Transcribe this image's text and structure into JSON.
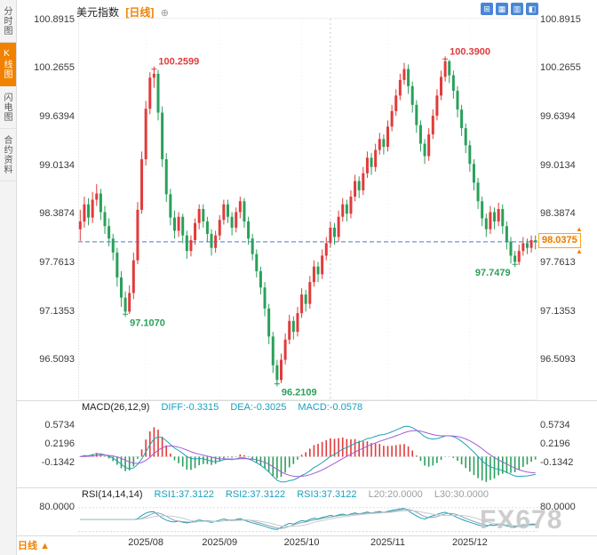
{
  "colors": {
    "up": "#e13b3b",
    "down": "#2aa05a",
    "orange": "#f08200",
    "teal_text": "#17a0c0",
    "diff_line": "#1fa2b5",
    "dea_line": "#a45cd5",
    "dashed_line": "#3f7fd0",
    "axis_text": "#3a3a3a",
    "watermark": "#c5c5c5",
    "icon_blue": "#4a86d8"
  },
  "sidebar": {
    "tabs": [
      {
        "label": "分时图",
        "active": false
      },
      {
        "label": "K线图",
        "active": true
      },
      {
        "label": "闪电图",
        "active": false
      },
      {
        "label": "合约资料",
        "active": false
      }
    ]
  },
  "header": {
    "title": "美元指数",
    "period_tag": "[日线]",
    "plus_glyph": "⊕",
    "tool_icons": [
      {
        "name": "pan-tool",
        "glyph": "⊞"
      },
      {
        "name": "panels-tool",
        "glyph": "▦"
      },
      {
        "name": "candle-style-tool",
        "glyph": "▥"
      },
      {
        "name": "line-style-tool",
        "glyph": "◧"
      }
    ]
  },
  "main_chart": {
    "y_axis_labels": [
      "100.8915",
      "100.2655",
      "99.6394",
      "99.0134",
      "98.3874",
      "97.7613",
      "97.1353",
      "96.5093"
    ],
    "price_max": 100.92,
    "price_min": 96.0,
    "crosshair_index": 61,
    "last_price": {
      "value": "98.0375",
      "arrow": "▲"
    },
    "month_ticks": [
      {
        "label": "2025/08",
        "index": 16
      },
      {
        "label": "2025/09",
        "index": 34
      },
      {
        "label": "2025/10",
        "index": 54
      },
      {
        "label": "2025/11",
        "index": 75
      },
      {
        "label": "2025/12",
        "index": 95
      }
    ]
  },
  "macd_panel": {
    "label": "MACD(26,12,9)",
    "diff_label": "DIFF:-0.3315",
    "dea_label": "DEA:-0.3025",
    "macd_label": "MACD:-0.0578",
    "y_labels": [
      "0.5734",
      "0.2196",
      "-0.1342"
    ],
    "range_max": 0.8,
    "range_min": -0.55
  },
  "rsi_panel": {
    "label": "RSI(14,14,14)",
    "rsi1_label": "RSI1:37.3122",
    "rsi2_label": "RSI2:37.3122",
    "rsi3_label": "RSI3:37.3122",
    "l20_label": "L20:20.0000",
    "l30_label": "L30:30.0000",
    "y_label": "80.0000",
    "range_max": 95,
    "range_min": 10
  },
  "bottom": {
    "period_label": "日线",
    "period_arrow": "▲",
    "watermark": "FX678"
  },
  "chart_data": {
    "type": "candlestick",
    "title": "美元指数 [日线]",
    "ohlc_format": [
      "open",
      "high",
      "low",
      "close"
    ],
    "last_price": 98.0375,
    "y_axis_ticks": [
      100.8915,
      100.2655,
      99.6394,
      99.0134,
      98.3874,
      97.7613,
      97.1353,
      96.5093
    ],
    "x_axis_ticks": [
      "2025/08",
      "2025/09",
      "2025/10",
      "2025/11",
      "2025/12"
    ],
    "key_points": [
      {
        "label": "100.2599",
        "price": 100.2599,
        "candle_index": 18,
        "kind": "high"
      },
      {
        "label": "100.3900",
        "price": 100.39,
        "candle_index": 89,
        "kind": "high"
      },
      {
        "label": "97.1070",
        "price": 97.107,
        "candle_index": 11,
        "kind": "low"
      },
      {
        "label": "96.2109",
        "price": 96.2109,
        "candle_index": 48,
        "kind": "low"
      },
      {
        "label": "97.7479",
        "price": 97.7479,
        "candle_index": 106,
        "kind": "low",
        "anchor": "end"
      }
    ],
    "indicators": {
      "macd": {
        "params": [
          26,
          12,
          9
        ],
        "diff": -0.3315,
        "dea": -0.3025,
        "macd": -0.0578
      },
      "rsi": {
        "params": [
          14,
          14,
          14
        ],
        "rsi1": 37.3122,
        "rsi2": 37.3122,
        "rsi3": 37.3122,
        "l20": 20.0,
        "l30": 30.0
      }
    },
    "candles": [
      [
        98.2,
        98.45,
        98.05,
        98.3
      ],
      [
        98.3,
        98.62,
        98.22,
        98.52
      ],
      [
        98.52,
        98.6,
        98.25,
        98.35
      ],
      [
        98.35,
        98.68,
        98.28,
        98.58
      ],
      [
        98.58,
        98.78,
        98.5,
        98.66
      ],
      [
        98.66,
        98.72,
        98.32,
        98.42
      ],
      [
        98.42,
        98.5,
        98.14,
        98.24
      ],
      [
        98.24,
        98.34,
        97.98,
        98.08
      ],
      [
        98.08,
        98.14,
        97.8,
        97.9
      ],
      [
        97.9,
        97.96,
        97.46,
        97.58
      ],
      [
        97.58,
        97.66,
        97.2,
        97.32
      ],
      [
        97.32,
        97.4,
        97.107,
        97.14
      ],
      [
        97.14,
        97.48,
        97.11,
        97.38
      ],
      [
        97.38,
        97.9,
        97.3,
        97.8
      ],
      [
        97.8,
        98.55,
        97.75,
        98.45
      ],
      [
        98.45,
        99.2,
        98.4,
        99.1
      ],
      [
        99.1,
        99.85,
        99.02,
        99.75
      ],
      [
        99.75,
        100.22,
        99.68,
        100.15
      ],
      [
        100.15,
        100.2599,
        100.02,
        100.2
      ],
      [
        100.2,
        100.25,
        99.6,
        99.7
      ],
      [
        99.7,
        99.78,
        99.0,
        99.1
      ],
      [
        99.1,
        99.18,
        98.55,
        98.65
      ],
      [
        98.65,
        98.72,
        98.25,
        98.35
      ],
      [
        98.35,
        98.44,
        98.08,
        98.18
      ],
      [
        98.18,
        98.42,
        98.1,
        98.36
      ],
      [
        98.36,
        98.4,
        98.02,
        98.12
      ],
      [
        98.12,
        98.18,
        97.82,
        97.92
      ],
      [
        97.92,
        98.12,
        97.85,
        98.06
      ],
      [
        98.06,
        98.34,
        98.0,
        98.28
      ],
      [
        98.28,
        98.52,
        98.2,
        98.46
      ],
      [
        98.46,
        98.52,
        98.22,
        98.3
      ],
      [
        98.3,
        98.36,
        98.04,
        98.14
      ],
      [
        98.14,
        98.2,
        97.86,
        97.96
      ],
      [
        97.96,
        98.18,
        97.9,
        98.12
      ],
      [
        98.12,
        98.38,
        98.06,
        98.32
      ],
      [
        98.32,
        98.58,
        98.26,
        98.52
      ],
      [
        98.52,
        98.58,
        98.28,
        98.36
      ],
      [
        98.36,
        98.42,
        98.12,
        98.22
      ],
      [
        98.22,
        98.48,
        98.16,
        98.42
      ],
      [
        98.42,
        98.62,
        98.34,
        98.56
      ],
      [
        98.56,
        98.6,
        98.22,
        98.3
      ],
      [
        98.3,
        98.36,
        98.0,
        98.08
      ],
      [
        98.08,
        98.14,
        97.8,
        97.88
      ],
      [
        97.88,
        97.94,
        97.58,
        97.66
      ],
      [
        97.66,
        97.72,
        97.36,
        97.45
      ],
      [
        97.45,
        97.52,
        97.08,
        97.18
      ],
      [
        97.18,
        97.24,
        96.72,
        96.82
      ],
      [
        96.82,
        96.88,
        96.35,
        96.45
      ],
      [
        96.45,
        96.52,
        96.2109,
        96.26
      ],
      [
        96.26,
        96.6,
        96.22,
        96.52
      ],
      [
        96.52,
        96.86,
        96.46,
        96.78
      ],
      [
        96.78,
        97.1,
        96.72,
        97.02
      ],
      [
        97.02,
        97.08,
        96.78,
        96.88
      ],
      [
        96.88,
        97.2,
        96.82,
        97.12
      ],
      [
        97.12,
        97.44,
        97.06,
        97.36
      ],
      [
        97.36,
        97.42,
        97.14,
        97.24
      ],
      [
        97.24,
        97.6,
        97.18,
        97.52
      ],
      [
        97.52,
        97.8,
        97.46,
        97.72
      ],
      [
        97.72,
        97.78,
        97.52,
        97.62
      ],
      [
        97.62,
        97.94,
        97.56,
        97.86
      ],
      [
        97.86,
        98.1,
        97.8,
        98.02
      ],
      [
        98.02,
        98.3,
        97.96,
        98.22
      ],
      [
        98.22,
        98.28,
        98.0,
        98.1
      ],
      [
        98.1,
        98.44,
        98.04,
        98.36
      ],
      [
        98.36,
        98.6,
        98.3,
        98.52
      ],
      [
        98.52,
        98.58,
        98.3,
        98.4
      ],
      [
        98.4,
        98.7,
        98.34,
        98.62
      ],
      [
        98.62,
        98.9,
        98.56,
        98.82
      ],
      [
        98.82,
        98.88,
        98.6,
        98.7
      ],
      [
        98.7,
        99.0,
        98.64,
        98.92
      ],
      [
        98.92,
        99.2,
        98.86,
        99.12
      ],
      [
        99.12,
        99.18,
        98.9,
        99.0
      ],
      [
        99.0,
        99.3,
        98.94,
        99.22
      ],
      [
        99.22,
        99.44,
        99.16,
        99.36
      ],
      [
        99.36,
        99.42,
        99.16,
        99.26
      ],
      [
        99.26,
        99.6,
        99.2,
        99.52
      ],
      [
        99.52,
        99.8,
        99.46,
        99.72
      ],
      [
        99.72,
        100.0,
        99.66,
        99.92
      ],
      [
        99.92,
        100.2,
        99.86,
        100.12
      ],
      [
        100.12,
        100.34,
        100.06,
        100.26
      ],
      [
        100.26,
        100.32,
        99.94,
        100.04
      ],
      [
        100.04,
        100.1,
        99.7,
        99.8
      ],
      [
        99.8,
        99.86,
        99.44,
        99.54
      ],
      [
        99.54,
        99.6,
        99.2,
        99.3
      ],
      [
        99.3,
        99.36,
        99.04,
        99.14
      ],
      [
        99.14,
        99.5,
        99.08,
        99.42
      ],
      [
        99.42,
        99.74,
        99.36,
        99.66
      ],
      [
        99.66,
        100.0,
        99.6,
        99.92
      ],
      [
        99.92,
        100.24,
        99.86,
        100.16
      ],
      [
        100.16,
        100.39,
        100.1,
        100.36
      ],
      [
        100.36,
        100.38,
        100.08,
        100.18
      ],
      [
        100.18,
        100.24,
        99.88,
        99.98
      ],
      [
        99.98,
        100.04,
        99.64,
        99.74
      ],
      [
        99.74,
        99.8,
        99.4,
        99.5
      ],
      [
        99.5,
        99.56,
        99.18,
        99.28
      ],
      [
        99.28,
        99.34,
        98.94,
        99.04
      ],
      [
        99.04,
        99.1,
        98.7,
        98.8
      ],
      [
        98.8,
        98.86,
        98.46,
        98.56
      ],
      [
        98.56,
        98.62,
        98.24,
        98.34
      ],
      [
        98.34,
        98.4,
        98.1,
        98.2
      ],
      [
        98.2,
        98.5,
        98.14,
        98.42
      ],
      [
        98.42,
        98.48,
        98.2,
        98.3
      ],
      [
        98.3,
        98.54,
        98.24,
        98.46
      ],
      [
        98.46,
        98.52,
        98.14,
        98.24
      ],
      [
        98.24,
        98.3,
        97.94,
        98.04
      ],
      [
        98.04,
        98.1,
        97.76,
        97.86
      ],
      [
        97.86,
        97.92,
        97.7479,
        97.78
      ],
      [
        97.78,
        98.0,
        97.74,
        97.92
      ],
      [
        97.92,
        98.1,
        97.86,
        98.02
      ],
      [
        98.02,
        98.08,
        97.88,
        97.96
      ],
      [
        97.96,
        98.12,
        97.9,
        98.06
      ],
      [
        98.06,
        98.12,
        97.94,
        98.0375
      ]
    ]
  }
}
